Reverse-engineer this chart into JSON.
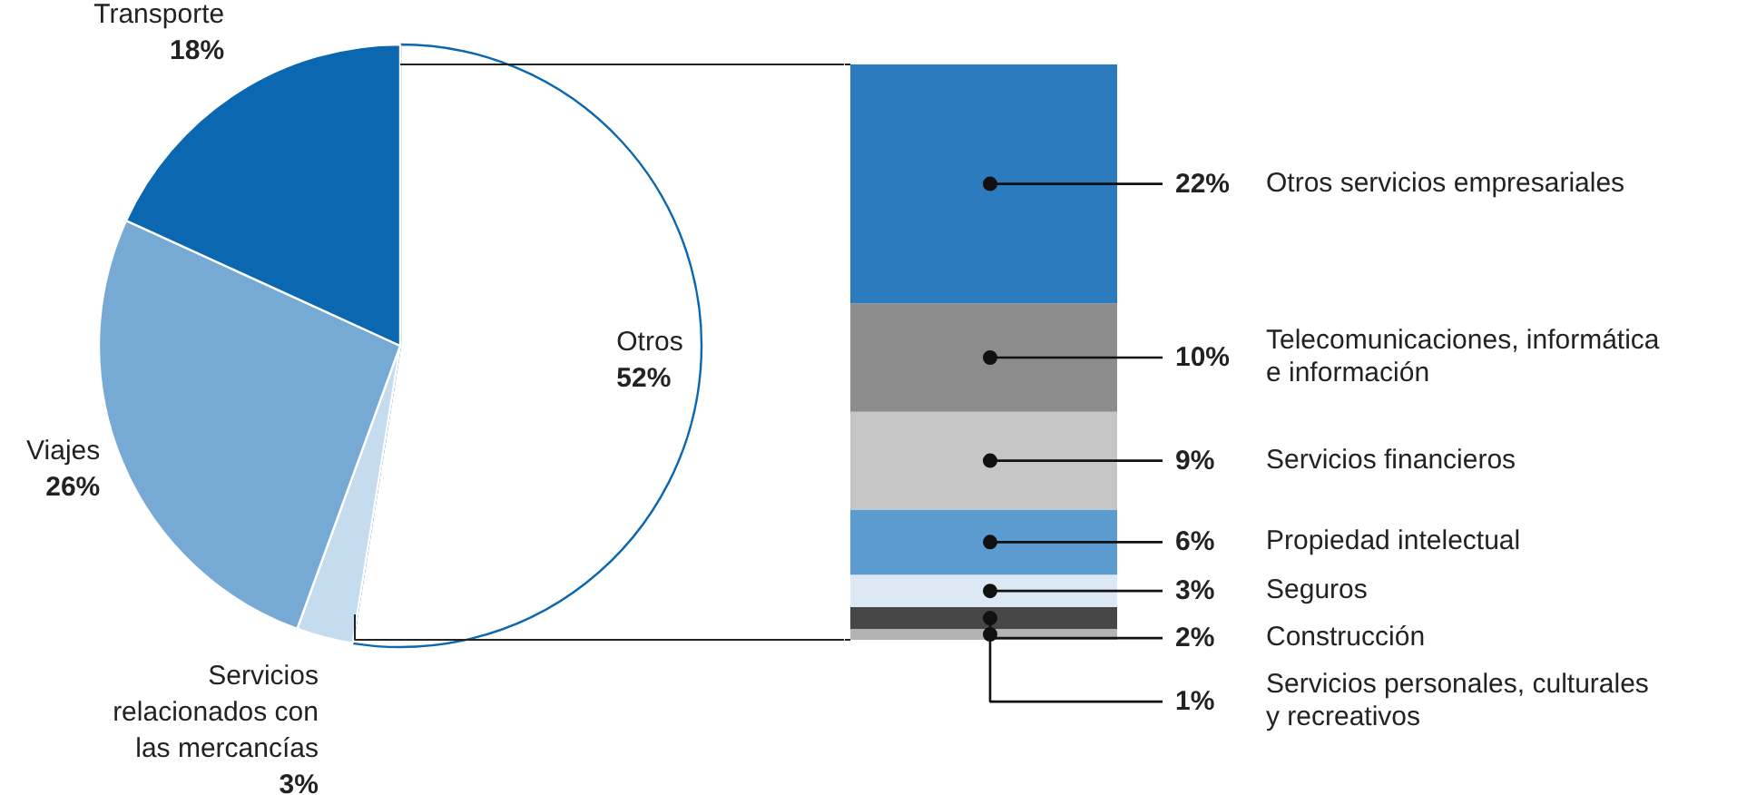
{
  "chart_data": [
    {
      "type": "pie",
      "categories": [
        "Otros",
        "Servicios relacionados con las mercancías",
        "Viajes",
        "Transporte"
      ],
      "values": [
        52,
        3,
        26,
        18
      ],
      "colors": [
        "#ffffff",
        "#c5dcef",
        "#76aad5",
        "#0a67b0"
      ],
      "value_labels": [
        "52%",
        "3%",
        "26%",
        "18%"
      ]
    },
    {
      "type": "bar",
      "stacked": true,
      "categories": [
        null
      ],
      "series": [
        {
          "name": "Servicios personales, culturales y recreativos",
          "color": "#b3b3b3",
          "values": [
            1
          ],
          "value_labels": [
            "1%"
          ]
        },
        {
          "name": "Construcción",
          "color": "#474747",
          "values": [
            2
          ],
          "value_labels": [
            "2%"
          ]
        },
        {
          "name": "Seguros",
          "color": "#dce8f4",
          "values": [
            3
          ],
          "value_labels": [
            "3%"
          ]
        },
        {
          "name": "Propiedad intelectual",
          "color": "#5b9bd0",
          "values": [
            6
          ],
          "value_labels": [
            "6%"
          ]
        },
        {
          "name": "Servicios financieros",
          "color": "#c6c6c6",
          "values": [
            9
          ],
          "value_labels": [
            "9%"
          ]
        },
        {
          "name": "Telecomunicaciones, informática e información",
          "color": "#8c8c8c",
          "values": [
            10
          ],
          "value_labels": [
            "10%"
          ]
        },
        {
          "name": "Otros servicios empresariales",
          "color": "#2c7bbf",
          "values": [
            22
          ],
          "value_labels": [
            "22%"
          ]
        }
      ]
    }
  ]
}
